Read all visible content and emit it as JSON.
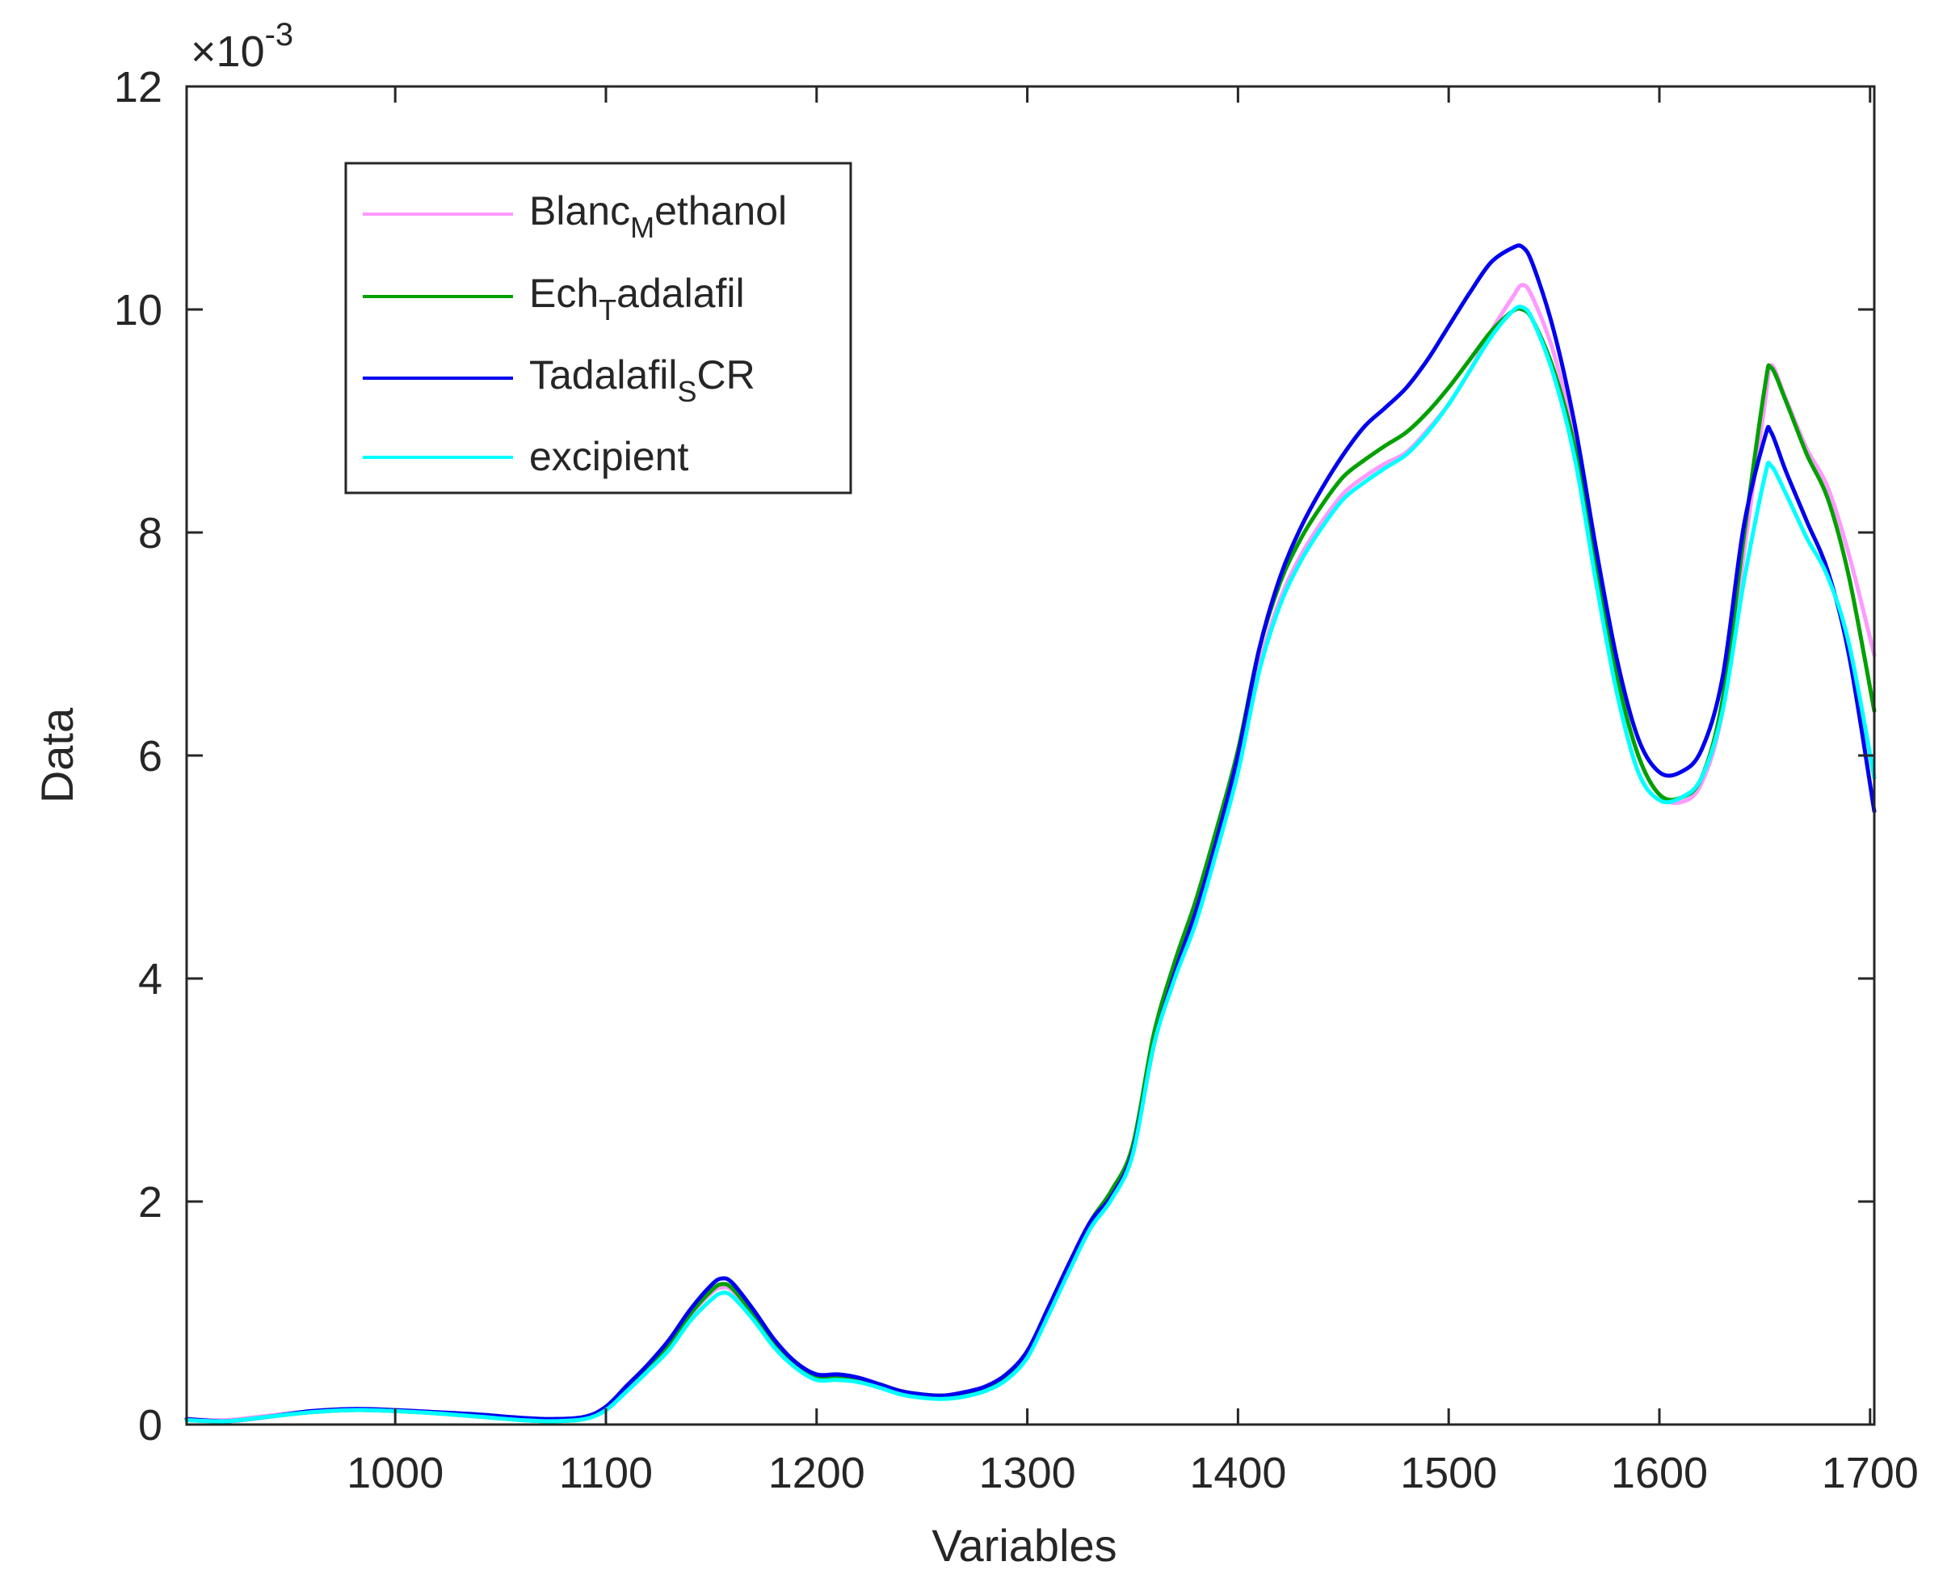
{
  "figure": {
    "xlabel": "Variables",
    "ylabel": "Data",
    "exponent": {
      "base": "×10",
      "power": "-3"
    }
  },
  "legend": [
    {
      "text": "Blanc",
      "sub": "M",
      "rest": "ethanol",
      "color": "#ff99ff"
    },
    {
      "text": "Ech",
      "sub": "T",
      "rest": "adalafil",
      "color": "#00a000"
    },
    {
      "text": "Tadalafil",
      "sub": "S",
      "rest": "CR",
      "color": "#0000ee"
    },
    {
      "text": "excipient",
      "sub": "",
      "rest": "",
      "color": "#00ffff"
    }
  ],
  "chart_data": {
    "type": "line",
    "xlabel": "Variables",
    "ylabel": "Data",
    "xlim": [
      901,
      1702
    ],
    "ylim": [
      0,
      12
    ],
    "y_scale_note": "×10^-3",
    "xticks": [
      1000,
      1100,
      1200,
      1300,
      1400,
      1500,
      1600,
      1700
    ],
    "yticks": [
      0,
      2,
      4,
      6,
      8,
      10,
      12
    ],
    "grid": false,
    "legend_position": "top-left",
    "x": [
      901,
      920,
      940,
      960,
      980,
      1000,
      1020,
      1040,
      1060,
      1075,
      1090,
      1100,
      1110,
      1120,
      1130,
      1140,
      1150,
      1155,
      1160,
      1170,
      1180,
      1190,
      1200,
      1210,
      1220,
      1230,
      1240,
      1250,
      1260,
      1270,
      1280,
      1290,
      1300,
      1310,
      1320,
      1330,
      1340,
      1350,
      1360,
      1370,
      1380,
      1390,
      1400,
      1410,
      1420,
      1430,
      1440,
      1450,
      1460,
      1470,
      1480,
      1490,
      1500,
      1510,
      1520,
      1530,
      1535,
      1540,
      1550,
      1560,
      1570,
      1580,
      1590,
      1600,
      1610,
      1620,
      1630,
      1640,
      1650,
      1653,
      1660,
      1670,
      1680,
      1690,
      1702
    ],
    "series": [
      {
        "name": "Blanc_Methanol",
        "color": "#ff99ff",
        "values": [
          0.05,
          0.04,
          0.08,
          0.12,
          0.14,
          0.13,
          0.11,
          0.08,
          0.05,
          0.04,
          0.06,
          0.15,
          0.33,
          0.52,
          0.72,
          0.98,
          1.18,
          1.23,
          1.2,
          0.98,
          0.72,
          0.53,
          0.42,
          0.42,
          0.4,
          0.35,
          0.29,
          0.26,
          0.25,
          0.27,
          0.32,
          0.42,
          0.62,
          1.0,
          1.4,
          1.78,
          2.05,
          2.45,
          3.4,
          4.05,
          4.55,
          5.2,
          5.9,
          6.8,
          7.4,
          7.8,
          8.1,
          8.35,
          8.5,
          8.62,
          8.72,
          8.92,
          9.15,
          9.45,
          9.8,
          10.1,
          10.22,
          10.1,
          9.6,
          8.8,
          7.7,
          6.7,
          6.0,
          5.65,
          5.58,
          5.75,
          6.4,
          7.8,
          9.15,
          9.5,
          9.2,
          8.75,
          8.4,
          7.8,
          6.9
        ]
      },
      {
        "name": "Ech_Tadalafil",
        "color": "#00a000",
        "values": [
          0.04,
          0.03,
          0.07,
          0.11,
          0.13,
          0.12,
          0.1,
          0.07,
          0.04,
          0.03,
          0.05,
          0.14,
          0.32,
          0.51,
          0.71,
          0.99,
          1.2,
          1.26,
          1.22,
          0.99,
          0.73,
          0.54,
          0.43,
          0.43,
          0.41,
          0.36,
          0.3,
          0.27,
          0.26,
          0.28,
          0.33,
          0.43,
          0.63,
          1.02,
          1.43,
          1.82,
          2.1,
          2.5,
          3.5,
          4.15,
          4.7,
          5.35,
          6.05,
          6.95,
          7.55,
          7.95,
          8.25,
          8.5,
          8.65,
          8.78,
          8.9,
          9.08,
          9.3,
          9.55,
          9.8,
          9.98,
          10.0,
          9.9,
          9.45,
          8.75,
          7.7,
          6.7,
          6.0,
          5.65,
          5.62,
          5.8,
          6.5,
          7.95,
          9.3,
          9.48,
          9.18,
          8.7,
          8.3,
          7.6,
          6.4
        ]
      },
      {
        "name": "Tadalafil_SCR",
        "color": "#0000ee",
        "values": [
          0.05,
          0.03,
          0.07,
          0.12,
          0.14,
          0.13,
          0.11,
          0.09,
          0.06,
          0.05,
          0.07,
          0.16,
          0.35,
          0.54,
          0.76,
          1.03,
          1.25,
          1.31,
          1.27,
          1.03,
          0.76,
          0.56,
          0.45,
          0.45,
          0.42,
          0.36,
          0.3,
          0.27,
          0.26,
          0.29,
          0.34,
          0.45,
          0.66,
          1.05,
          1.45,
          1.82,
          2.05,
          2.45,
          3.4,
          4.05,
          4.6,
          5.25,
          6.0,
          6.95,
          7.6,
          8.05,
          8.4,
          8.7,
          8.95,
          9.12,
          9.3,
          9.55,
          9.85,
          10.15,
          10.42,
          10.55,
          10.56,
          10.4,
          9.8,
          8.95,
          7.85,
          6.85,
          6.15,
          5.85,
          5.85,
          6.05,
          6.7,
          8.05,
          8.85,
          8.9,
          8.55,
          8.1,
          7.65,
          6.9,
          5.5
        ]
      },
      {
        "name": "excipient",
        "color": "#00ffff",
        "values": [
          0.04,
          0.03,
          0.07,
          0.11,
          0.13,
          0.12,
          0.1,
          0.07,
          0.04,
          0.03,
          0.05,
          0.13,
          0.3,
          0.48,
          0.67,
          0.93,
          1.12,
          1.18,
          1.15,
          0.94,
          0.69,
          0.51,
          0.4,
          0.4,
          0.38,
          0.33,
          0.27,
          0.24,
          0.23,
          0.25,
          0.3,
          0.4,
          0.6,
          0.98,
          1.38,
          1.76,
          2.02,
          2.42,
          3.4,
          4.0,
          4.5,
          5.15,
          5.85,
          6.75,
          7.35,
          7.75,
          8.05,
          8.3,
          8.45,
          8.58,
          8.7,
          8.9,
          9.15,
          9.45,
          9.75,
          9.98,
          10.02,
          9.9,
          9.4,
          8.65,
          7.55,
          6.55,
          5.85,
          5.6,
          5.62,
          5.8,
          6.4,
          7.55,
          8.5,
          8.6,
          8.35,
          7.95,
          7.6,
          7.0,
          5.8
        ]
      }
    ]
  }
}
